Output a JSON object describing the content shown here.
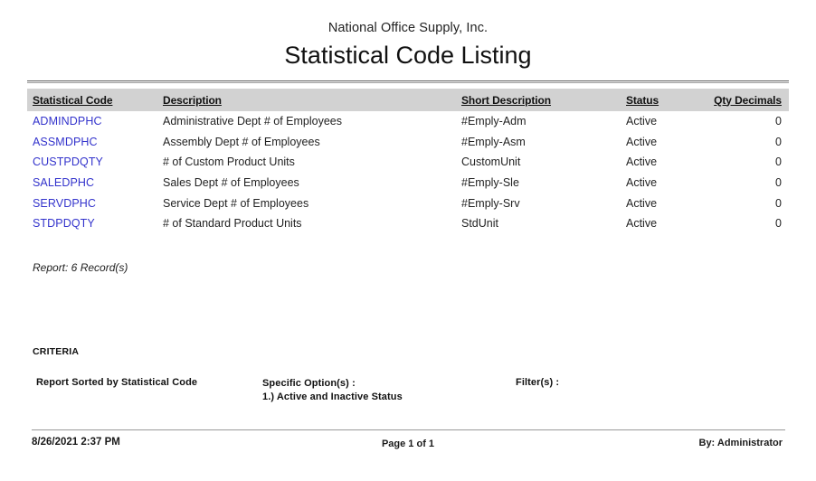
{
  "report": {
    "company": "National Office Supply, Inc.",
    "title": "Statistical Code Listing",
    "summary": "Report: 6 Record(s)"
  },
  "table": {
    "columns": {
      "code": "Statistical Code",
      "description": "Description",
      "short_description": "Short Description",
      "status": "Status",
      "qty_decimals": "Qty Decimals"
    },
    "rows": [
      {
        "code": "ADMINDPHC",
        "description": "Administrative Dept # of Employees",
        "short_description": "#Emply-Adm",
        "status": "Active",
        "qty_decimals": "0"
      },
      {
        "code": "ASSMDPHC",
        "description": "Assembly Dept # of Employees",
        "short_description": "#Emply-Asm",
        "status": "Active",
        "qty_decimals": "0"
      },
      {
        "code": "CUSTPDQTY",
        "description": "# of Custom Product Units",
        "short_description": "CustomUnit",
        "status": "Active",
        "qty_decimals": "0"
      },
      {
        "code": "SALEDPHC",
        "description": "Sales Dept # of Employees",
        "short_description": "#Emply-Sle",
        "status": "Active",
        "qty_decimals": "0"
      },
      {
        "code": "SERVDPHC",
        "description": "Service Dept # of Employees",
        "short_description": "#Emply-Srv",
        "status": "Active",
        "qty_decimals": "0"
      },
      {
        "code": "STDPDQTY",
        "description": "# of Standard Product Units",
        "short_description": "StdUnit",
        "status": "Active",
        "qty_decimals": "0"
      }
    ]
  },
  "criteria": {
    "heading": "CRITERIA",
    "sorted_by": "Report Sorted by Statistical Code",
    "specific_options_label": "Specific Option(s) :",
    "specific_option_1": "1.) Active and Inactive Status",
    "filters_label": "Filter(s) :"
  },
  "footer": {
    "datetime": "8/26/2021 2:37 PM",
    "page": "Page 1 of 1",
    "by": "By: Administrator"
  },
  "colors": {
    "code_link": "#3333cc",
    "header_band": "#d2d2d2",
    "text": "#1a1a1a"
  }
}
